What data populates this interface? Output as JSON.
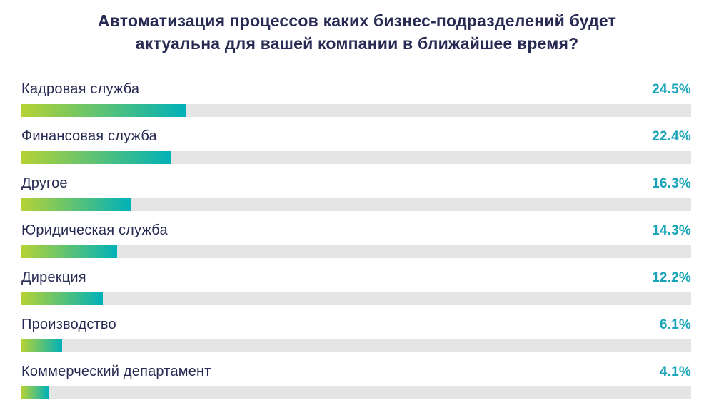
{
  "header": {
    "title_line1": "Автоматизация процессов каких бизнес-подразделений будет",
    "title_line2": "актуальна для вашей компании в ближайшее время?"
  },
  "colors": {
    "title": "#272a52",
    "category_label": "#272a52",
    "value_label": "#18a4b8",
    "bar_gradient_start": "#b5d235",
    "bar_gradient_end": "#00b1b8",
    "track": "#e5e5e5",
    "background": "#ffffff"
  },
  "chart_data": {
    "type": "bar",
    "orientation": "horizontal",
    "title": "Автоматизация процессов каких бизнес-подразделений будет актуальна для вашей компании в ближайшее время?",
    "categories": [
      "Кадровая служба",
      "Финансовая служба",
      "Другое",
      "Юридическая служба",
      "Дирекция",
      "Производство",
      "Коммерческий департамент"
    ],
    "values": [
      24.5,
      22.4,
      16.3,
      14.3,
      12.2,
      6.1,
      4.1
    ],
    "value_labels": [
      "24.5%",
      "22.4%",
      "16.3%",
      "14.3%",
      "12.2%",
      "6.1%",
      "4.1%"
    ],
    "xlabel": "",
    "ylabel": "",
    "xlim": [
      0,
      100
    ],
    "grid": false,
    "legend": false,
    "value_label_position": "right-aligned-end-of-track",
    "bar_style": "gradient-green-to-teal-on-gray-track"
  }
}
